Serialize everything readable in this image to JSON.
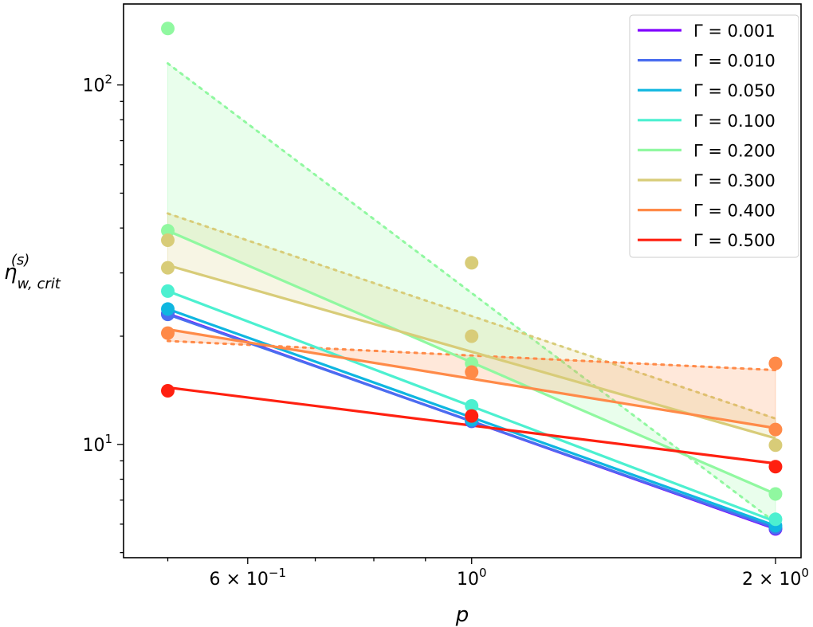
{
  "chart_data": {
    "type": "line",
    "xscale": "log",
    "yscale": "log",
    "xlim": [
      0.452,
      2.12
    ],
    "ylim": [
      4.84,
      168
    ],
    "xlabel": "p",
    "ylabel": {
      "base": "η",
      "sub": "w, crit",
      "sup": "(s)"
    },
    "xticks": [
      {
        "value": 0.6,
        "mant": "6 × 10",
        "exp": "−1"
      },
      {
        "value": 1,
        "mant": "10",
        "exp": "0"
      },
      {
        "value": 2,
        "mant": "2 × 10",
        "exp": "0"
      }
    ],
    "yticks": [
      {
        "value": 10,
        "mant": "10",
        "exp": "1"
      },
      {
        "value": 100,
        "mant": "10",
        "exp": "2"
      }
    ],
    "legend_position": "top-right",
    "x": [
      0.5,
      1,
      2
    ],
    "series": [
      {
        "name": "Γ = 0.001",
        "color": "#8000ff",
        "points": [
          [
            0.5,
            23.1
          ],
          [
            1,
            11.6
          ],
          [
            2,
            5.82
          ]
        ],
        "fit": [
          23.1,
          5.82
        ]
      },
      {
        "name": "Γ = 0.010",
        "color": "#4a6ef0",
        "points": [
          [
            0.5,
            23.0
          ],
          [
            1,
            11.6
          ],
          [
            2,
            5.85
          ]
        ],
        "fit": [
          23.0,
          5.85
        ]
      },
      {
        "name": "Γ = 0.050",
        "color": "#0fb6e0",
        "points": [
          [
            0.5,
            23.8
          ],
          [
            1,
            11.7
          ],
          [
            2,
            5.94
          ]
        ],
        "fit": [
          23.8,
          5.94
        ]
      },
      {
        "name": "Γ = 0.100",
        "color": "#4cf0d0",
        "points": [
          [
            0.5,
            26.7
          ],
          [
            1,
            12.8
          ],
          [
            2,
            6.19
          ]
        ],
        "fit": [
          26.7,
          6.1
        ]
      },
      {
        "name": "Γ = 0.200",
        "color": "#90f8a0",
        "points": [
          [
            0.5,
            143.6
          ],
          [
            0.5,
            39.3
          ],
          [
            1,
            16.8
          ],
          [
            2,
            7.28
          ]
        ],
        "fit": [
          39.3,
          7.28
        ],
        "bound": [
          114.8,
          6.06
        ]
      },
      {
        "name": "Γ = 0.300",
        "color": "#d8cc78",
        "points": [
          [
            0.5,
            37.0
          ],
          [
            0.5,
            31.0
          ],
          [
            1,
            32.0
          ],
          [
            1,
            20.0
          ],
          [
            2,
            9.95
          ]
        ],
        "fit": [
          31.5,
          10.4
        ],
        "bound": [
          43.9,
          11.8
        ]
      },
      {
        "name": "Γ = 0.400",
        "color": "#ff8a48",
        "points": [
          [
            0.5,
            20.4
          ],
          [
            1,
            15.9
          ],
          [
            2,
            16.8
          ],
          [
            2,
            11.0
          ]
        ],
        "fit": [
          20.9,
          11.1
        ],
        "bound": [
          19.4,
          16.1
        ]
      },
      {
        "name": "Γ = 0.500",
        "color": "#ff2010",
        "points": [
          [
            0.5,
            14.1
          ],
          [
            1,
            12.0
          ],
          [
            2,
            8.67
          ]
        ],
        "fit": [
          14.4,
          8.85
        ]
      }
    ]
  }
}
